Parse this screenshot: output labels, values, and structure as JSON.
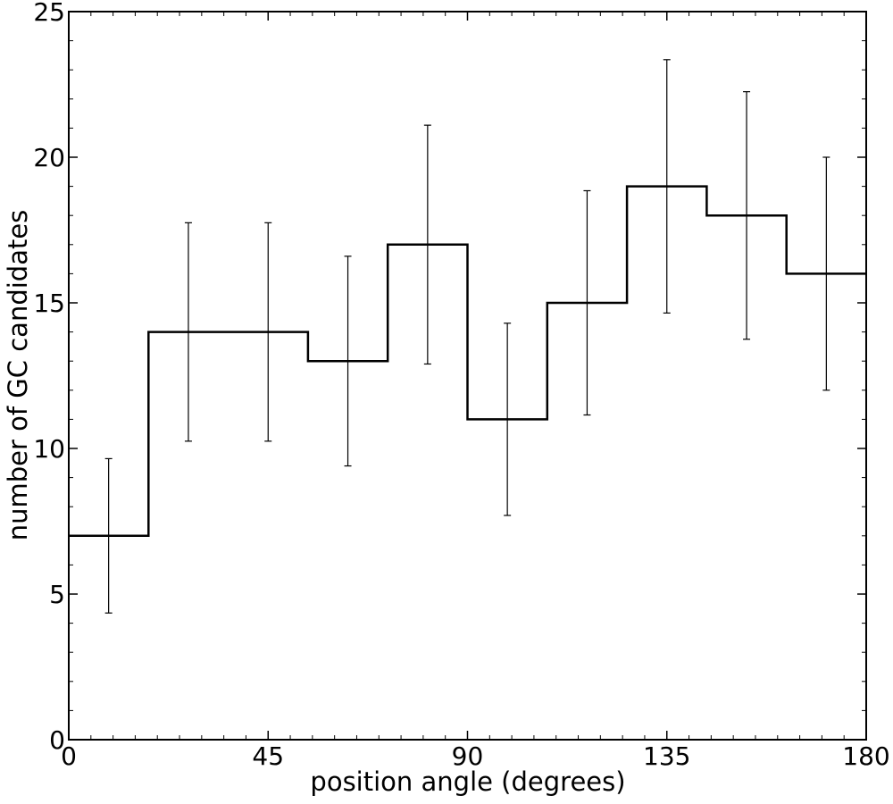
{
  "chart_data": {
    "type": "histogram",
    "xlabel": "position angle (degrees)",
    "ylabel": "number of GC candidates",
    "xlim": [
      0,
      180
    ],
    "ylim": [
      0,
      25
    ],
    "x_ticks": [
      0,
      45,
      90,
      135,
      180
    ],
    "y_ticks": [
      0,
      5,
      10,
      15,
      20,
      25
    ],
    "x_minor_step": 5,
    "y_minor_step": 1,
    "bin_edges": [
      0,
      18,
      36,
      54,
      72,
      90,
      108,
      126,
      144,
      162,
      180
    ],
    "counts": [
      7,
      14,
      14,
      13,
      17,
      11,
      15,
      19,
      18,
      16
    ],
    "errorbars": [
      {
        "x": 9,
        "low": 4.35,
        "high": 9.65
      },
      {
        "x": 27,
        "low": 10.25,
        "high": 17.75
      },
      {
        "x": 45,
        "low": 10.25,
        "high": 17.75
      },
      {
        "x": 63,
        "low": 9.4,
        "high": 16.6
      },
      {
        "x": 81,
        "low": 12.9,
        "high": 21.1
      },
      {
        "x": 99,
        "low": 7.7,
        "high": 14.3
      },
      {
        "x": 117,
        "low": 11.15,
        "high": 18.85
      },
      {
        "x": 135,
        "low": 14.65,
        "high": 23.35
      },
      {
        "x": 153,
        "low": 13.75,
        "high": 22.25
      },
      {
        "x": 171,
        "low": 12.0,
        "high": 20.0
      }
    ],
    "line_color": "#000000",
    "grid": false
  }
}
